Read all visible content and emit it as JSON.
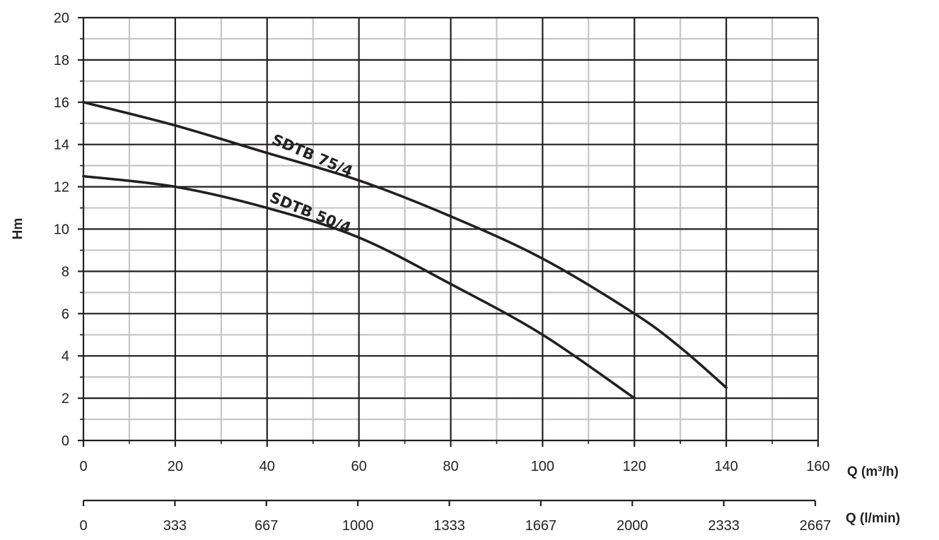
{
  "chart_data": {
    "type": "line",
    "title": "",
    "xlabel": "Q (m³/h)",
    "x2label": "Q (l/min)",
    "ylabel": "Hm",
    "xlim": [
      0,
      160
    ],
    "ylim": [
      0,
      20
    ],
    "x_ticks": [
      "0",
      "20",
      "40",
      "60",
      "80",
      "100",
      "120",
      "140",
      "160"
    ],
    "x2_ticks": [
      "0",
      "333",
      "667",
      "1000",
      "1333",
      "1667",
      "2000",
      "2333",
      "2667"
    ],
    "y_ticks": [
      "0",
      "2",
      "4",
      "6",
      "8",
      "10",
      "12",
      "14",
      "16",
      "18",
      "20"
    ],
    "grid": true,
    "line_color": "#231f20",
    "series": [
      {
        "name": "SDTB 75/4",
        "x": [
          0,
          20,
          40,
          60,
          80,
          100,
          120,
          130,
          140
        ],
        "y": [
          16.0,
          14.9,
          13.6,
          12.3,
          10.6,
          8.6,
          6.0,
          4.4,
          2.5
        ]
      },
      {
        "name": "SDTB 50/4",
        "x": [
          0,
          20,
          40,
          60,
          80,
          100,
          120
        ],
        "y": [
          12.5,
          12.0,
          11.0,
          9.6,
          7.4,
          5.0,
          2.0
        ]
      }
    ]
  }
}
